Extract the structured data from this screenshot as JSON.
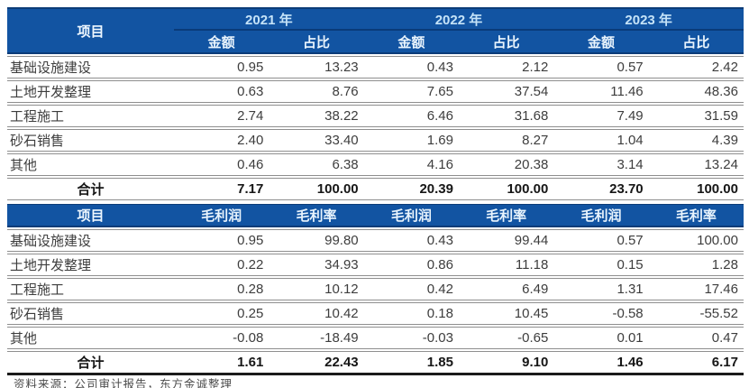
{
  "colors": {
    "header_bg": "#1254a2",
    "header_top_edge": "#0c3c78",
    "year_divider": "#0a3b79",
    "year_text": "#c5e3f8",
    "subheader_text": "#e9f4fd",
    "row_line": "#8f8f8f",
    "total_bottom_line": "#1b1b1b",
    "body_text": "#3d3d3d"
  },
  "table1": {
    "item_header": "项目",
    "years": [
      "2021 年",
      "2022 年",
      "2023 年"
    ],
    "sub_headers": [
      "金额",
      "占比",
      "金额",
      "占比",
      "金额",
      "占比"
    ],
    "rows": [
      {
        "item": "基础设施建设",
        "values": [
          "0.95",
          "13.23",
          "0.43",
          "2.12",
          "0.57",
          "2.42"
        ]
      },
      {
        "item": "土地开发整理",
        "values": [
          "0.63",
          "8.76",
          "7.65",
          "37.54",
          "11.46",
          "48.36"
        ]
      },
      {
        "item": "工程施工",
        "values": [
          "2.74",
          "38.22",
          "6.46",
          "31.68",
          "7.49",
          "31.59"
        ]
      },
      {
        "item": "砂石销售",
        "values": [
          "2.40",
          "33.40",
          "1.69",
          "8.27",
          "1.04",
          "4.39"
        ]
      },
      {
        "item": "其他",
        "values": [
          "0.46",
          "6.38",
          "4.16",
          "20.38",
          "3.14",
          "13.24"
        ]
      }
    ],
    "total": {
      "item": "合计",
      "values": [
        "7.17",
        "100.00",
        "20.39",
        "100.00",
        "23.70",
        "100.00"
      ]
    }
  },
  "table2": {
    "item_header": "项目",
    "sub_headers": [
      "毛利润",
      "毛利率",
      "毛利润",
      "毛利率",
      "毛利润",
      "毛利率"
    ],
    "rows": [
      {
        "item": "基础设施建设",
        "values": [
          "0.95",
          "99.80",
          "0.43",
          "99.44",
          "0.57",
          "100.00"
        ]
      },
      {
        "item": "土地开发整理",
        "values": [
          "0.22",
          "34.93",
          "0.86",
          "11.18",
          "0.15",
          "1.28"
        ]
      },
      {
        "item": "工程施工",
        "values": [
          "0.28",
          "10.12",
          "0.42",
          "6.49",
          "1.31",
          "17.46"
        ]
      },
      {
        "item": "砂石销售",
        "values": [
          "0.25",
          "10.42",
          "0.18",
          "10.45",
          "-0.58",
          "-55.52"
        ]
      },
      {
        "item": "其他",
        "values": [
          "-0.08",
          "-18.49",
          "-0.03",
          "-0.65",
          "0.01",
          "0.47"
        ]
      }
    ],
    "total": {
      "item": "合计",
      "values": [
        "1.61",
        "22.43",
        "1.85",
        "9.10",
        "1.46",
        "6.17"
      ]
    }
  },
  "footer": {
    "source_note": "资料来源：公司审计报告，东方金诚整理"
  }
}
